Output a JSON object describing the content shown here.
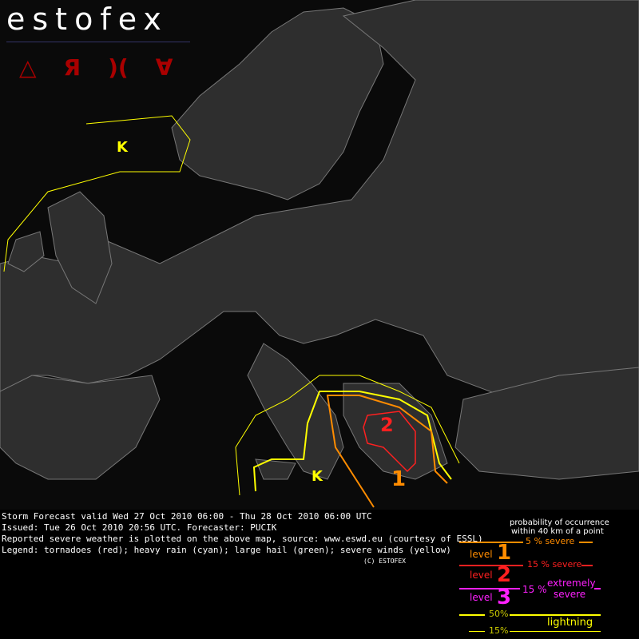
{
  "logo": {
    "text": "estofex",
    "icons": [
      "tornado-icon",
      "wind-icon",
      "hail-icon",
      "rain-icon"
    ]
  },
  "map": {
    "labels": [
      {
        "text": "1",
        "color": "#ff8c00"
      },
      {
        "text": "2",
        "color": "#ff2020"
      }
    ]
  },
  "info": {
    "line1": "Storm Forecast valid Wed 27 Oct 2010 06:00 - Thu 28 Oct 2010 06:00 UTC",
    "line2": "Issued: Tue 26 Oct 2010 20:56 UTC. Forecaster: PUCIK",
    "line3": "Reported severe weather is plotted on the above map, source: www.eswd.eu (courtesy of ESSL)",
    "line4": "Legend: tornadoes (red); heavy rain (cyan); large hail (green); severe winds (yellow)",
    "copyright": "(C) ESTOFEX"
  },
  "legend": {
    "title1": "probability of occurrence",
    "title2": "within 40 km of a point",
    "l1_prob": "5 % severe",
    "l1_label": "level",
    "l1_num": "1",
    "l2_prob": "15 % severe",
    "l2_label": "level",
    "l2_num": "2",
    "l3_prob": "15 %",
    "l3_desc1": "extremely",
    "l3_desc2": "severe",
    "l3_label": "level",
    "l3_num": "3",
    "lightning_50": "50%",
    "lightning_15": "15%",
    "lightning": "lightning",
    "colors": {
      "level1": "#ff8c00",
      "level2": "#ff2020",
      "level3": "#ff20ff",
      "lightning": "#ffff00"
    }
  }
}
